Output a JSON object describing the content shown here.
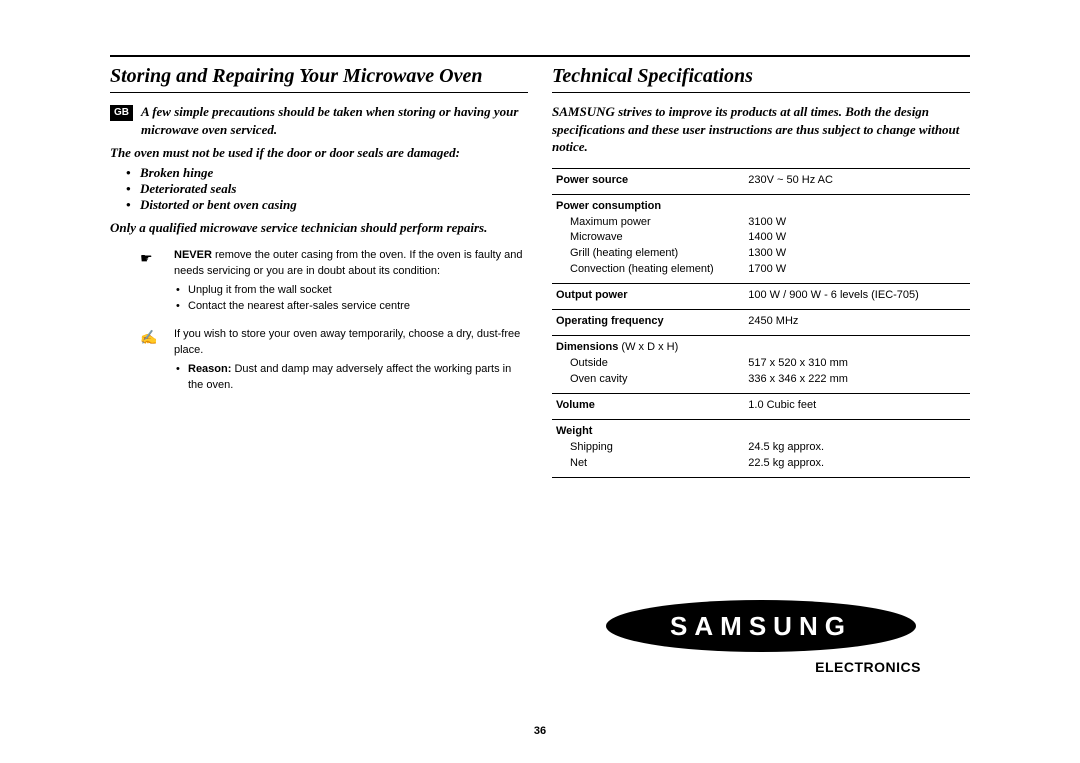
{
  "page_number": "36",
  "left": {
    "heading": "Storing and Repairing Your Microwave Oven",
    "gb_label": "GB",
    "intro": "A few simple precautions should be taken when storing or having your microwave oven serviced.",
    "note1": "The oven must not be used if the door or door seals are damaged:",
    "damage_items": [
      "Broken hinge",
      "Deteriorated seals",
      "Distorted or bent oven casing"
    ],
    "note2": "Only a qualified microwave service technician should perform repairs.",
    "never_icon": "☛",
    "never_label": "NEVER",
    "never_text": " remove the outer casing from the oven. If the oven is faulty and needs servicing or you are in doubt about its condition:",
    "never_sub": [
      "Unplug it from the wall socket",
      "Contact the nearest after-sales service centre"
    ],
    "store_icon": "✍",
    "store_text": "If you wish to store your oven away temporarily, choose a dry, dust-free place.",
    "reason_label": "Reason:",
    "reason_text": " Dust and damp may adversely affect the working parts in the oven."
  },
  "right": {
    "heading": "Technical Specifications",
    "intro": "SAMSUNG strives to improve its products at all times. Both the design specifications and these user instructions are thus subject to change without notice.",
    "specs": [
      {
        "label": "Power source",
        "value": "230V ~ 50 Hz AC"
      },
      {
        "label": "Power consumption",
        "sub": [
          {
            "k": "Maximum power",
            "v": "3100 W"
          },
          {
            "k": "Microwave",
            "v": "1400 W"
          },
          {
            "k": "Grill (heating element)",
            "v": "1300 W"
          },
          {
            "k": "Convection (heating element)",
            "v": "1700 W"
          }
        ]
      },
      {
        "label": "Output power",
        "value": "100 W / 900 W - 6 levels (IEC-705)"
      },
      {
        "label": "Operating frequency",
        "value": "2450 MHz"
      },
      {
        "label": "Dimensions",
        "note": " (W x D x H)",
        "sub": [
          {
            "k": "Outside",
            "v": "517 x 520 x 310 mm"
          },
          {
            "k": "Oven cavity",
            "v": "336 x 346 x 222 mm"
          }
        ]
      },
      {
        "label": "Volume",
        "value": "1.0 Cubic feet"
      },
      {
        "label": "Weight",
        "sub": [
          {
            "k": "Shipping",
            "v": "24.5 kg approx."
          },
          {
            "k": "Net",
            "v": "22.5 kg approx."
          }
        ]
      }
    ],
    "logo_sub": "ELECTRONICS"
  }
}
